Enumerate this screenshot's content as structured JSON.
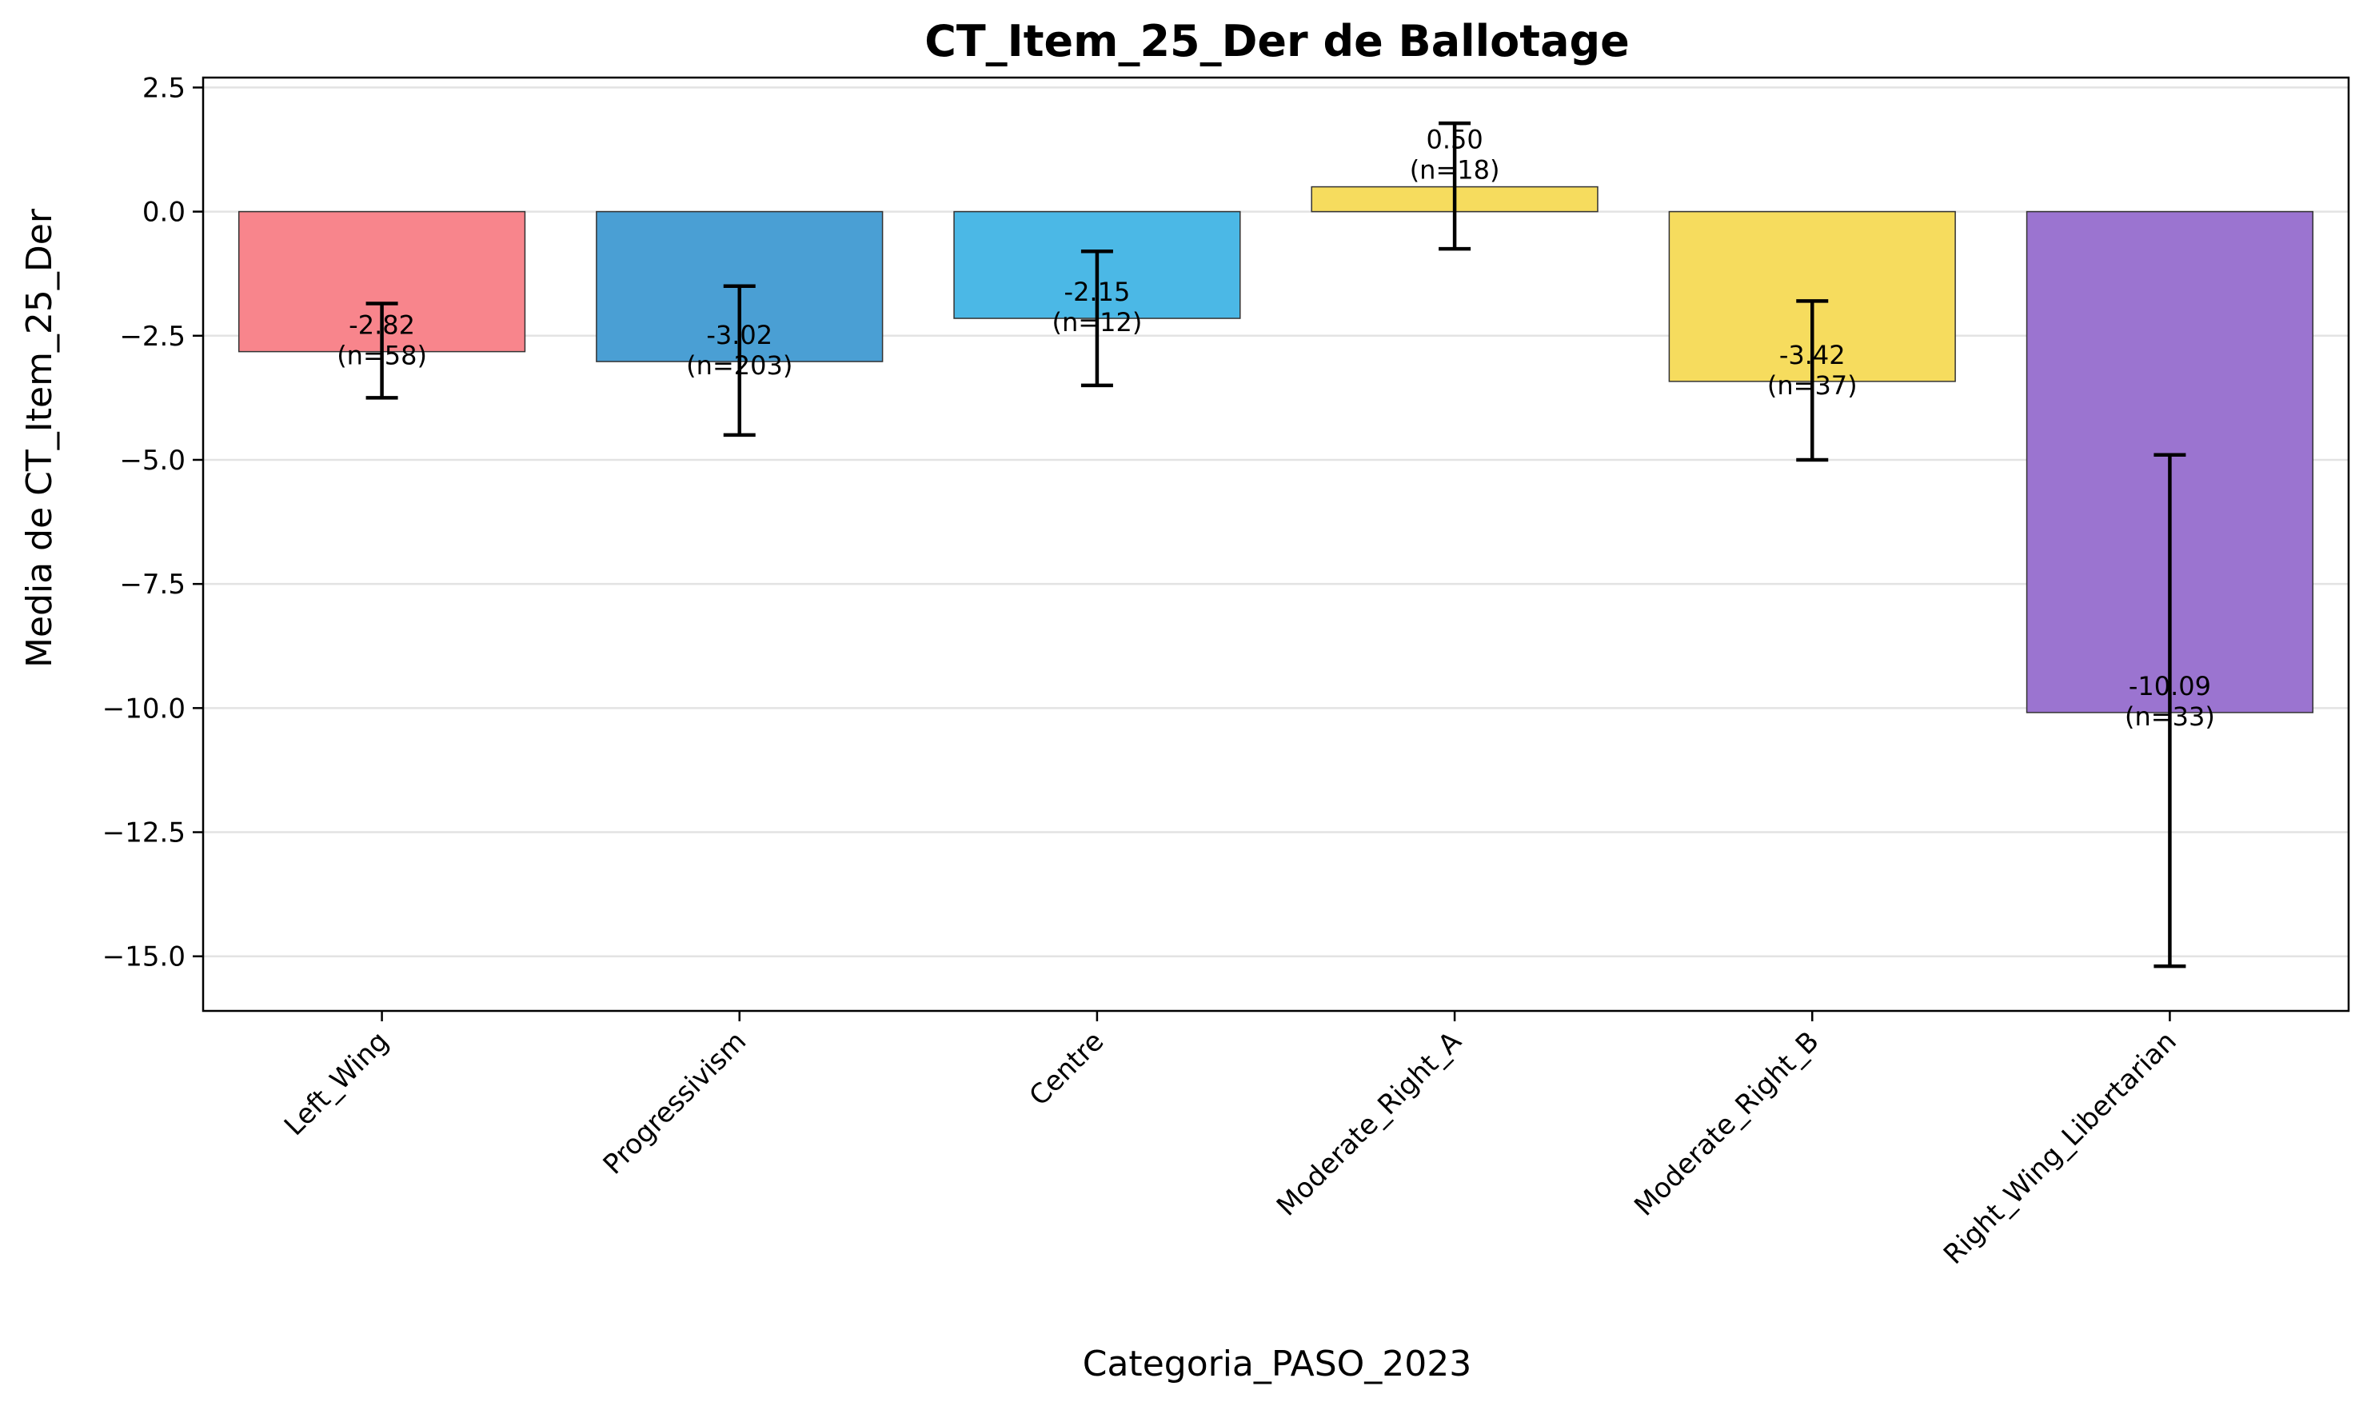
{
  "chart_data": {
    "type": "bar",
    "title": "CT_Item_25_Der de Ballotage",
    "xlabel": "Categoria_PASO_2023",
    "ylabel": "Media de CT_Item_25_Der",
    "categories": [
      "Left_Wing",
      "Progressivism",
      "Centre",
      "Moderate_Right_A",
      "Moderate_Right_B",
      "Right_Wing_Libertarian"
    ],
    "values": [
      -2.82,
      -3.02,
      -2.15,
      0.5,
      -3.42,
      -10.09
    ],
    "error_low": [
      -3.75,
      -4.5,
      -3.5,
      -0.75,
      -5.0,
      -15.2
    ],
    "error_high": [
      -1.85,
      -1.5,
      -0.8,
      1.78,
      -1.8,
      -4.9
    ],
    "labels": [
      {
        "value": "-2.82",
        "n": "(n=58)"
      },
      {
        "value": "-3.02",
        "n": "(n=203)"
      },
      {
        "value": "-2.15",
        "n": "(n=12)"
      },
      {
        "value": "0.50",
        "n": "(n=18)"
      },
      {
        "value": "-3.42",
        "n": "(n=37)"
      },
      {
        "value": "-10.09",
        "n": "(n=33)"
      }
    ],
    "colors": [
      "#f8858c",
      "#4a9fd4",
      "#4bb8e6",
      "#f6dc5e",
      "#f6dc5e",
      "#9b74d0"
    ],
    "ylim": [
      -16.1,
      2.7
    ],
    "yticks": [
      2.5,
      0.0,
      -2.5,
      -5.0,
      -7.5,
      -10.0,
      -12.5,
      -15.0
    ],
    "ytick_labels": [
      "2.5",
      "0.0",
      "−2.5",
      "−5.0",
      "−7.5",
      "−10.0",
      "−12.5",
      "−15.0"
    ],
    "grid": "horizontal"
  }
}
